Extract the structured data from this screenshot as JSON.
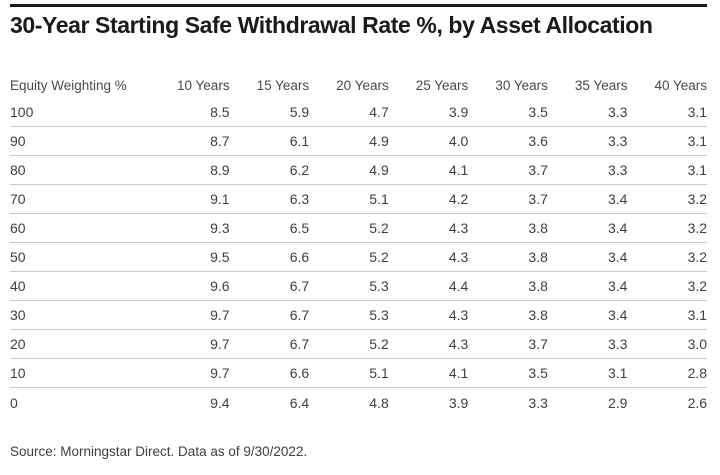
{
  "title": "30-Year Starting Safe Withdrawal Rate %, by Asset Allocation",
  "source_note": "Source: Morningstar Direct. Data as of 9/30/2022.",
  "colors": {
    "rule": "#1a1a1a",
    "title_text": "#1a1a1a",
    "body_text": "#3f3f3f",
    "row_divider": "#cccccc",
    "background": "#ffffff"
  },
  "table": {
    "columns": [
      "Equity Weighting %",
      "10 Years",
      "15 Years",
      "20 Years",
      "25 Years",
      "30 Years",
      "35 Years",
      "40 Years"
    ],
    "rows": [
      {
        "equity_weighting": "100",
        "values": [
          "8.5",
          "5.9",
          "4.7",
          "3.9",
          "3.5",
          "3.3",
          "3.1"
        ]
      },
      {
        "equity_weighting": "90",
        "values": [
          "8.7",
          "6.1",
          "4.9",
          "4.0",
          "3.6",
          "3.3",
          "3.1"
        ]
      },
      {
        "equity_weighting": "80",
        "values": [
          "8.9",
          "6.2",
          "4.9",
          "4.1",
          "3.7",
          "3.3",
          "3.1"
        ]
      },
      {
        "equity_weighting": "70",
        "values": [
          "9.1",
          "6.3",
          "5.1",
          "4.2",
          "3.7",
          "3.4",
          "3.2"
        ]
      },
      {
        "equity_weighting": "60",
        "values": [
          "9.3",
          "6.5",
          "5.2",
          "4.3",
          "3.8",
          "3.4",
          "3.2"
        ]
      },
      {
        "equity_weighting": "50",
        "values": [
          "9.5",
          "6.6",
          "5.2",
          "4.3",
          "3.8",
          "3.4",
          "3.2"
        ]
      },
      {
        "equity_weighting": "40",
        "values": [
          "9.6",
          "6.7",
          "5.3",
          "4.4",
          "3.8",
          "3.4",
          "3.2"
        ]
      },
      {
        "equity_weighting": "30",
        "values": [
          "9.7",
          "6.7",
          "5.3",
          "4.3",
          "3.8",
          "3.4",
          "3.1"
        ]
      },
      {
        "equity_weighting": "20",
        "values": [
          "9.7",
          "6.7",
          "5.2",
          "4.3",
          "3.7",
          "3.3",
          "3.0"
        ]
      },
      {
        "equity_weighting": "10",
        "values": [
          "9.7",
          "6.6",
          "5.1",
          "4.1",
          "3.5",
          "3.1",
          "2.8"
        ]
      },
      {
        "equity_weighting": "0",
        "values": [
          "9.4",
          "6.4",
          "4.8",
          "3.9",
          "3.3",
          "2.9",
          "2.6"
        ]
      }
    ]
  },
  "chart_data": {
    "type": "table",
    "title": "30-Year Starting Safe Withdrawal Rate %, by Asset Allocation",
    "xlabel": "Equity Weighting %",
    "ylabel": "Starting Safe Withdrawal Rate %",
    "categories": [
      100,
      90,
      80,
      70,
      60,
      50,
      40,
      30,
      20,
      10,
      0
    ],
    "series": [
      {
        "name": "10 Years",
        "values": [
          8.5,
          8.7,
          8.9,
          9.1,
          9.3,
          9.5,
          9.6,
          9.7,
          9.7,
          9.7,
          9.4
        ]
      },
      {
        "name": "15 Years",
        "values": [
          5.9,
          6.1,
          6.2,
          6.3,
          6.5,
          6.6,
          6.7,
          6.7,
          6.7,
          6.6,
          6.4
        ]
      },
      {
        "name": "20 Years",
        "values": [
          4.7,
          4.9,
          4.9,
          5.1,
          5.2,
          5.2,
          5.3,
          5.3,
          5.2,
          5.1,
          4.8
        ]
      },
      {
        "name": "25 Years",
        "values": [
          3.9,
          4.0,
          4.1,
          4.2,
          4.3,
          4.3,
          4.4,
          4.3,
          4.3,
          4.1,
          3.9
        ]
      },
      {
        "name": "30 Years",
        "values": [
          3.5,
          3.6,
          3.7,
          3.7,
          3.8,
          3.8,
          3.8,
          3.8,
          3.7,
          3.5,
          3.3
        ]
      },
      {
        "name": "35 Years",
        "values": [
          3.3,
          3.3,
          3.3,
          3.4,
          3.4,
          3.4,
          3.4,
          3.4,
          3.3,
          3.1,
          2.9
        ]
      },
      {
        "name": "40 Years",
        "values": [
          3.1,
          3.1,
          3.1,
          3.2,
          3.2,
          3.2,
          3.2,
          3.1,
          3.0,
          2.8,
          2.6
        ]
      }
    ],
    "source": "Source: Morningstar Direct. Data as of 9/30/2022."
  }
}
